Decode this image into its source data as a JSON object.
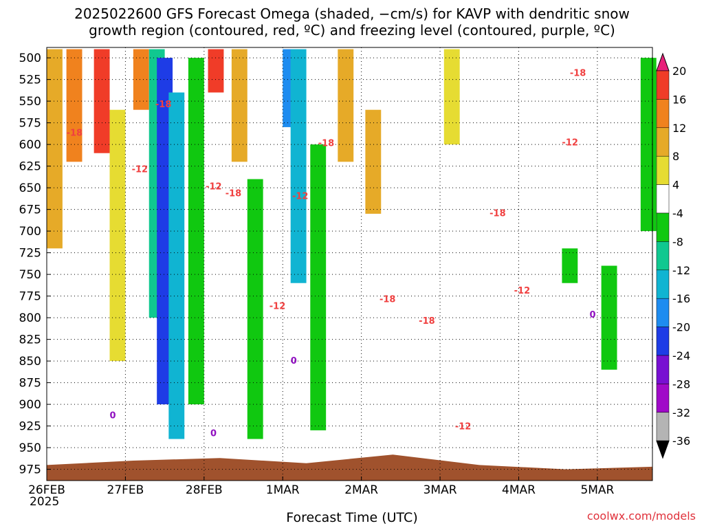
{
  "header": {
    "title_line1": "2025022600 GFS Forecast Omega (shaded, −cm/s) for KAVP with dendritic snow",
    "title_line2": "growth region (contoured, red, ºC) and freezing level (contoured, purple, ºC)"
  },
  "footer": {
    "xlabel": "Forecast Time (UTC)",
    "credit": "coolwx.com/models",
    "year": "2025"
  },
  "colors": {
    "snow_contour": "#f04040",
    "freezing_contour": "#9010c0",
    "terrain": "#a0522d",
    "grid": "#000000"
  },
  "chart_data": {
    "type": "heatmap",
    "title": "2025022600 GFS Forecast Omega (shaded, −cm/s) for KAVP with dendritic snow growth region (contoured, red, ºC) and freezing level (contoured, purple, ºC)",
    "xlabel": "Forecast Time (UTC)",
    "ylabel": "",
    "x_ticks": [
      "26FEB",
      "27FEB",
      "28FEB",
      "1MAR",
      "2MAR",
      "3MAR",
      "4MAR",
      "5MAR"
    ],
    "y_ticks": [
      500,
      525,
      550,
      575,
      600,
      625,
      650,
      675,
      700,
      725,
      750,
      775,
      800,
      825,
      850,
      875,
      900,
      925,
      950,
      975
    ],
    "y_range": [
      488,
      988
    ],
    "x_range_days": [
      0,
      7.7
    ],
    "grid": true,
    "colorbar": {
      "levels": [
        20,
        16,
        12,
        8,
        4,
        -4,
        -8,
        -12,
        -16,
        -20,
        -24,
        -28,
        -32,
        -36
      ],
      "colors": [
        "#e8207a",
        "#f03c28",
        "#f0821e",
        "#e6aa28",
        "#e6dc32",
        "#ffffff",
        "#10c810",
        "#10c890",
        "#10b4d2",
        "#1e8cf0",
        "#1e3ce6",
        "#7810d2",
        "#a00ac8",
        "#b4b4b4",
        "#000000"
      ]
    },
    "shading_regions": [
      {
        "t": 0.0,
        "p": [
          490,
          720
        ],
        "value": 8
      },
      {
        "t": 0.25,
        "p": [
          490,
          620
        ],
        "value": 12
      },
      {
        "t": 0.6,
        "p": [
          490,
          610
        ],
        "value": 16
      },
      {
        "t": 0.8,
        "p": [
          560,
          850
        ],
        "value": 4
      },
      {
        "t": 1.1,
        "p": [
          490,
          560
        ],
        "value": 12
      },
      {
        "t": 1.3,
        "p": [
          490,
          800
        ],
        "value": -12
      },
      {
        "t": 1.4,
        "p": [
          500,
          900
        ],
        "value": -24
      },
      {
        "t": 1.55,
        "p": [
          540,
          940
        ],
        "value": -16
      },
      {
        "t": 1.8,
        "p": [
          500,
          900
        ],
        "value": -8
      },
      {
        "t": 2.05,
        "p": [
          490,
          540
        ],
        "value": 16
      },
      {
        "t": 2.35,
        "p": [
          490,
          620
        ],
        "value": 8
      },
      {
        "t": 2.55,
        "p": [
          640,
          940
        ],
        "value": -8
      },
      {
        "t": 3.0,
        "p": [
          490,
          580
        ],
        "value": -20
      },
      {
        "t": 3.1,
        "p": [
          490,
          760
        ],
        "value": -16
      },
      {
        "t": 3.35,
        "p": [
          600,
          930
        ],
        "value": -8
      },
      {
        "t": 3.7,
        "p": [
          490,
          620
        ],
        "value": 8
      },
      {
        "t": 4.05,
        "p": [
          560,
          680
        ],
        "value": 8
      },
      {
        "t": 5.05,
        "p": [
          490,
          600
        ],
        "value": 4
      },
      {
        "t": 6.55,
        "p": [
          720,
          760
        ],
        "value": -8
      },
      {
        "t": 7.05,
        "p": [
          740,
          860
        ],
        "value": -8
      },
      {
        "t": 7.55,
        "p": [
          500,
          700
        ],
        "value": -8
      }
    ],
    "snow_growth_contours": [
      {
        "label": "-18",
        "t": 0.25,
        "p": 590
      },
      {
        "label": "-18",
        "t": 1.38,
        "p": 557
      },
      {
        "label": "-12",
        "t": 1.08,
        "p": 632
      },
      {
        "label": "-12",
        "t": 2.02,
        "p": 652
      },
      {
        "label": "-18",
        "t": 2.27,
        "p": 660
      },
      {
        "label": "-12",
        "t": 2.83,
        "p": 790
      },
      {
        "label": "-18",
        "t": 3.45,
        "p": 602
      },
      {
        "label": "-12",
        "t": 3.12,
        "p": 663
      },
      {
        "label": "-18",
        "t": 4.23,
        "p": 782
      },
      {
        "label": "-18",
        "t": 4.73,
        "p": 807
      },
      {
        "label": "-12",
        "t": 5.19,
        "p": 929
      },
      {
        "label": "-18",
        "t": 5.63,
        "p": 683
      },
      {
        "label": "-12",
        "t": 5.94,
        "p": 772
      },
      {
        "label": "-12",
        "t": 6.55,
        "p": 601
      },
      {
        "label": "-18",
        "t": 6.65,
        "p": 521
      }
    ],
    "freezing_level_contours": [
      {
        "label": "0",
        "t": 0.8,
        "p": 916
      },
      {
        "label": "0",
        "t": 2.08,
        "p": 937
      },
      {
        "label": "0",
        "t": 3.1,
        "p": 853
      },
      {
        "label": "0",
        "t": 6.9,
        "p": 800
      }
    ],
    "terrain_pressure": [
      970,
      965,
      962,
      968,
      958,
      970,
      975,
      972
    ]
  }
}
